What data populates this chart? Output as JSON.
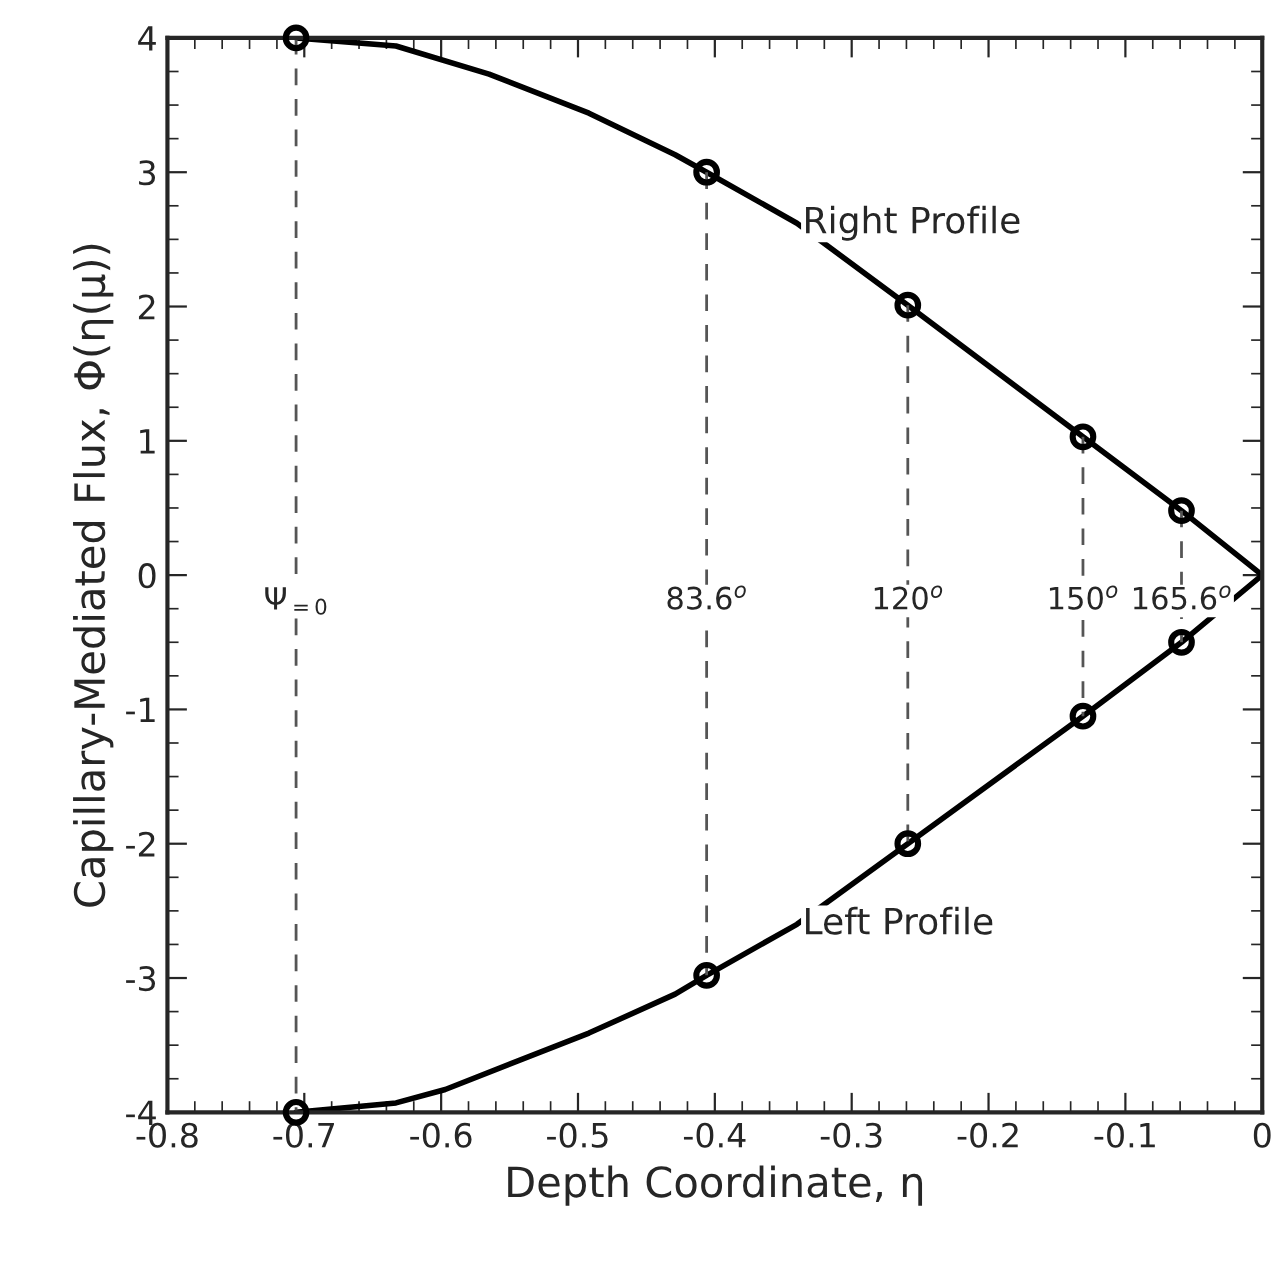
{
  "chart_data": {
    "type": "line",
    "xlabel": "Depth Coordinate, η",
    "ylabel": "Capillary-Mediated Flux, Φ(η(μ))",
    "xlim": [
      -0.8,
      0
    ],
    "xticks": [
      -0.8,
      -0.7,
      -0.6,
      -0.5,
      -0.4,
      -0.3,
      -0.2,
      -0.1,
      0
    ],
    "ylim": [
      -4,
      4
    ],
    "yticks": [
      -4,
      -3,
      -2,
      -1,
      0,
      1,
      2,
      3,
      4
    ],
    "grid": false,
    "legend": false,
    "series": [
      {
        "color": "#000000",
        "marker": "none",
        "line_style": "solid",
        "x": [
          -0.706,
          -0.633,
          -0.565,
          -0.492,
          -0.429,
          -0.406,
          -0.34,
          -0.259,
          -0.131,
          -0.059,
          0
        ],
        "values": [
          4,
          3.94,
          3.73,
          3.44,
          3.13,
          3.0,
          2.62,
          2.01,
          1.03,
          0.48,
          0
        ]
      },
      {
        "color": "#000000",
        "marker": "none",
        "line_style": "solid",
        "x": [
          -0.706,
          -0.633,
          -0.597,
          -0.492,
          -0.429,
          -0.406,
          -0.34,
          -0.259,
          -0.131,
          -0.059,
          0
        ],
        "values": [
          -4,
          -3.93,
          -3.83,
          -3.41,
          -3.12,
          -2.98,
          -2.6,
          -2.0,
          -1.05,
          -0.5,
          0
        ]
      },
      {
        "type": "scatter",
        "color": "#000000",
        "marker": "circle",
        "x": [
          -0.706,
          -0.406,
          -0.259,
          -0.131,
          -0.059
        ],
        "values": [
          4,
          3.0,
          2.01,
          1.03,
          0.48
        ]
      },
      {
        "type": "scatter",
        "color": "#000000",
        "marker": "circle",
        "x": [
          -0.706,
          -0.406,
          -0.259,
          -0.131,
          -0.059
        ],
        "values": [
          -4,
          -2.98,
          -2.0,
          -1.05,
          -0.5
        ]
      },
      {
        "type": "line",
        "color": "#555555",
        "marker": "none",
        "line_style": "dashed",
        "x": [
          -0.706,
          -0.706
        ],
        "values": [
          4,
          -4
        ]
      },
      {
        "type": "line",
        "color": "#555555",
        "marker": "none",
        "line_style": "dashed",
        "x": [
          -0.406,
          -0.406
        ],
        "values": [
          3.0,
          -2.98
        ]
      },
      {
        "type": "line",
        "color": "#555555",
        "marker": "none",
        "line_style": "dashed",
        "x": [
          -0.259,
          -0.259
        ],
        "values": [
          2.01,
          -2.0
        ]
      },
      {
        "type": "line",
        "color": "#555555",
        "marker": "none",
        "line_style": "dashed",
        "x": [
          -0.131,
          -0.131
        ],
        "values": [
          1.03,
          -1.05
        ]
      },
      {
        "type": "line",
        "color": "#555555",
        "marker": "none",
        "line_style": "dashed",
        "x": [
          -0.059,
          -0.059
        ],
        "values": [
          0.48,
          -0.5
        ]
      }
    ],
    "annotations": [
      {
        "text": "Right Profile",
        "x": -0.34,
        "y": 2.62
      },
      {
        "text": "Left Profile",
        "x": -0.34,
        "y": -2.6
      },
      {
        "text": "Ψ$_{=0}$",
        "x": -0.706,
        "y": 0
      },
      {
        "text": "83.6$^{o}$",
        "x": -0.406,
        "y": 0
      },
      {
        "text": "120$^{o}$",
        "x": -0.259,
        "y": 0
      },
      {
        "text": "150$^{o}$",
        "x": -0.131,
        "y": 0
      },
      {
        "text": "165.6$^{o}$",
        "x": -0.059,
        "y": 0
      }
    ]
  }
}
